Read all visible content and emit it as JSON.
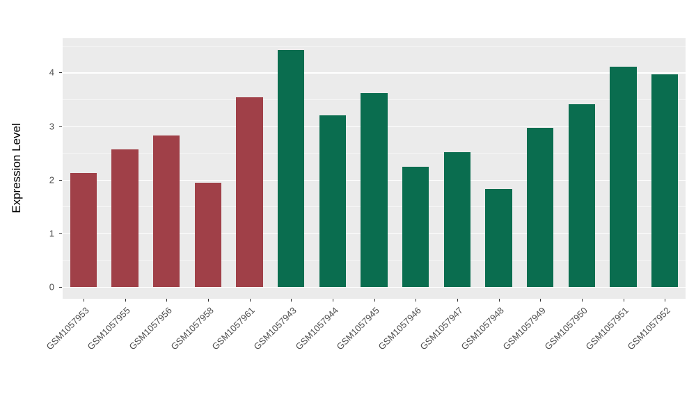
{
  "chart_data": {
    "type": "bar",
    "title": "",
    "xlabel": "",
    "ylabel": "Expression Level",
    "categories": [
      "GSM1057953",
      "GSM1057955",
      "GSM1057956",
      "GSM1057958",
      "GSM1057961",
      "GSM1057943",
      "GSM1057944",
      "GSM1057945",
      "GSM1057946",
      "GSM1057947",
      "GSM1057948",
      "GSM1057949",
      "GSM1057950",
      "GSM1057951",
      "GSM1057952"
    ],
    "values": [
      2.13,
      2.56,
      2.82,
      1.94,
      3.54,
      4.42,
      3.2,
      3.61,
      2.24,
      2.52,
      1.83,
      2.97,
      3.41,
      4.11,
      3.97
    ],
    "bar_colors": [
      "#A04048",
      "#A04048",
      "#A04048",
      "#A04048",
      "#A04048",
      "#0A6D4F",
      "#0A6D4F",
      "#0A6D4F",
      "#0A6D4F",
      "#0A6D4F",
      "#0A6D4F",
      "#0A6D4F",
      "#0A6D4F",
      "#0A6D4F",
      "#0A6D4F"
    ],
    "group_colors": {
      "group_1": "#A04048",
      "group_2": "#0A6D4F"
    },
    "yticks": [
      0,
      1,
      2,
      3,
      4
    ],
    "yticks_minor": [
      0.5,
      1.5,
      2.5,
      3.5,
      4.5
    ],
    "ylim": [
      -0.22,
      4.64
    ],
    "grid": "on",
    "legend": "none",
    "panel_background": "#EBEBEB",
    "gridline_color": "#FFFFFF",
    "figure_background": "#FFFFFF"
  }
}
